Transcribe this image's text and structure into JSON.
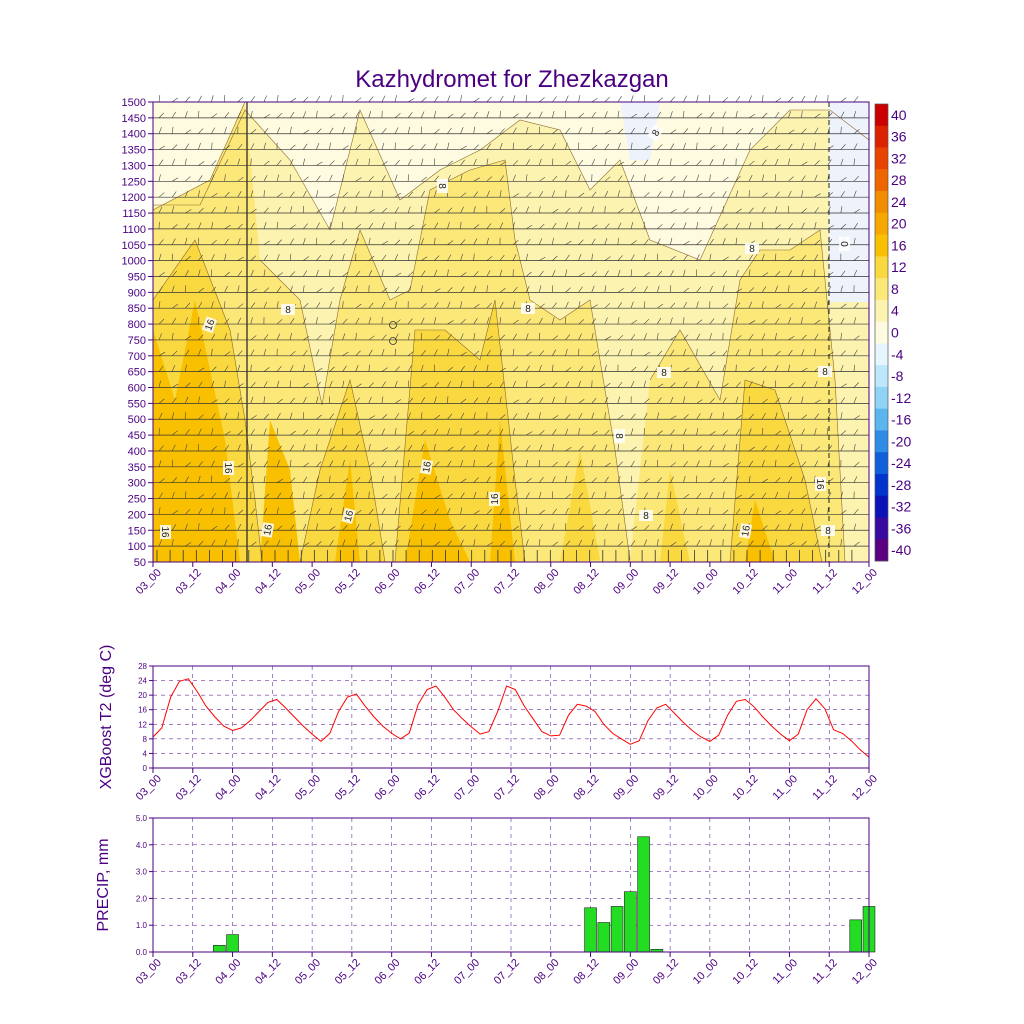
{
  "title": "Kazhydromet for Zhezkazgan",
  "time_ticks": [
    "03_00",
    "03_12",
    "04_00",
    "04_12",
    "05_00",
    "05_12",
    "06_00",
    "06_12",
    "07_00",
    "07_12",
    "08_00",
    "08_12",
    "09_00",
    "09_12",
    "10_00",
    "10_12",
    "11_00",
    "11_12",
    "12_00"
  ],
  "colors": {
    "text": "#4b0082",
    "frame": "#4b0082",
    "t2_line": "#ff0000",
    "precip_bar": "#22dd22",
    "grid": "#4b0082"
  },
  "chart_data": [
    {
      "type": "heatmap",
      "panel": "cross-section",
      "title": "Kazhydromet for Zhezkazgan",
      "y_ticks": [
        50,
        100,
        150,
        200,
        250,
        300,
        350,
        400,
        450,
        500,
        550,
        600,
        650,
        700,
        750,
        800,
        850,
        900,
        950,
        1000,
        1050,
        1100,
        1150,
        1200,
        1250,
        1300,
        1350,
        1400,
        1450,
        1500
      ],
      "ylim": [
        50,
        1500
      ],
      "x_ticks": [
        "03_00",
        "03_12",
        "04_00",
        "04_12",
        "05_00",
        "05_12",
        "06_00",
        "06_12",
        "07_00",
        "07_12",
        "08_00",
        "08_12",
        "09_00",
        "09_12",
        "10_00",
        "10_12",
        "11_00",
        "11_12",
        "12_00"
      ],
      "colorbar": {
        "labels": [
          "40",
          "36",
          "32",
          "28",
          "24",
          "20",
          "16",
          "12",
          "8",
          "4",
          "0",
          "-4",
          "-8",
          "-12",
          "-16",
          "-20",
          "-24",
          "-28",
          "-32",
          "-36",
          "-40"
        ],
        "colors": [
          "#cc0000",
          "#dd2200",
          "#e84400",
          "#ef6600",
          "#f28c00",
          "#f6a800",
          "#f8c000",
          "#fad840",
          "#fce878",
          "#fdf3b0",
          "#fefbe0",
          "#e6f6ff",
          "#bde8fb",
          "#8fd4f6",
          "#5bb6f0",
          "#2f8ce6",
          "#1060dc",
          "#0034cc",
          "#0a12b8",
          "#3a0aa0",
          "#5a0080"
        ]
      },
      "contour_labels": [
        "16",
        "16",
        "16",
        "16",
        "16",
        "16",
        "16",
        "16",
        "16",
        "8",
        "8",
        "8",
        "8",
        "8",
        "8",
        "8",
        "8",
        "8",
        "8",
        "0",
        "0"
      ],
      "wind_barbs": true
    },
    {
      "type": "line",
      "panel": "temperature",
      "ylabel": "XGBoost T2 (deg C)",
      "ylim": [
        0,
        28
      ],
      "y_ticks": [
        0,
        4,
        8,
        12,
        16,
        20,
        24,
        28
      ],
      "x_ticks": [
        "03_00",
        "03_12",
        "04_00",
        "04_12",
        "05_00",
        "05_12",
        "06_00",
        "06_12",
        "07_00",
        "07_12",
        "08_00",
        "08_12",
        "09_00",
        "09_12",
        "10_00",
        "10_12",
        "11_00",
        "11_12",
        "12_00"
      ],
      "series": [
        {
          "values": [
            8.5,
            11,
            19.5,
            23.8,
            24.5,
            21,
            17,
            14,
            11.5,
            10.3,
            11,
            13,
            15.5,
            18,
            18.8,
            16.5,
            14,
            11.5,
            9.3,
            7.3,
            9.5,
            15.5,
            19.5,
            20.3,
            17,
            14,
            11.5,
            9.5,
            8,
            9.6,
            17.5,
            21.5,
            22.5,
            19.5,
            16,
            13.5,
            11.3,
            9.3,
            10,
            15.5,
            22.5,
            21.5,
            17,
            13.5,
            10,
            8.8,
            9,
            14.5,
            17.5,
            17,
            15.5,
            12,
            9.5,
            8,
            6.5,
            7.5,
            13,
            16.5,
            17.5,
            15,
            12.5,
            10.3,
            8.5,
            7.3,
            9,
            14.5,
            18.3,
            18.8,
            16.8,
            14,
            11.5,
            9.3,
            7.5,
            9.3,
            16,
            19,
            16.3,
            10.5,
            9.5,
            7.5,
            5,
            3
          ]
        }
      ]
    },
    {
      "type": "bar",
      "panel": "precipitation",
      "ylabel": "PRECIP, mm",
      "ylim": [
        0,
        5
      ],
      "y_ticks": [
        "0.0",
        "1.0",
        "2.0",
        "3.0",
        "4.0",
        "5.0"
      ],
      "x_ticks": [
        "03_00",
        "03_12",
        "04_00",
        "04_12",
        "05_00",
        "05_12",
        "06_00",
        "06_12",
        "07_00",
        "07_12",
        "08_00",
        "08_12",
        "09_00",
        "09_12",
        "10_00",
        "10_12",
        "11_00",
        "11_12",
        "12_00"
      ],
      "bars": [
        {
          "t": 5,
          "value": 0.25
        },
        {
          "t": 6,
          "value": 0.65
        },
        {
          "t": 33,
          "value": 1.65
        },
        {
          "t": 34,
          "value": 1.1
        },
        {
          "t": 35,
          "value": 1.7
        },
        {
          "t": 36,
          "value": 2.25
        },
        {
          "t": 37,
          "value": 4.3
        },
        {
          "t": 38,
          "value": 0.1
        },
        {
          "t": 53,
          "value": 1.2
        },
        {
          "t": 54,
          "value": 1.7
        }
      ]
    }
  ]
}
